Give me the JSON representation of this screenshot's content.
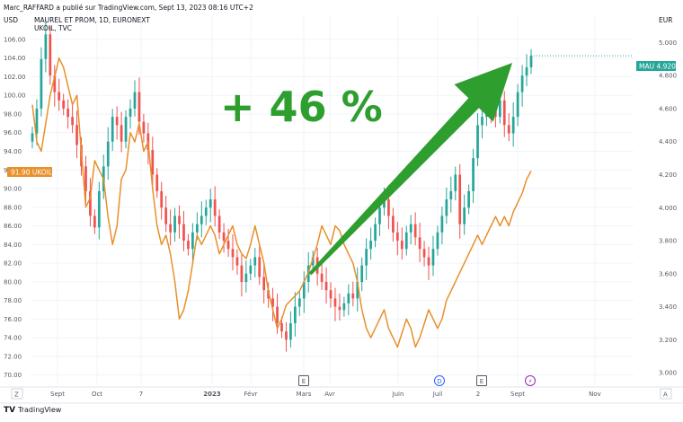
{
  "header": {
    "attribution": "Marc_RAFFARD a publié sur TradingView.com, Sept 13, 2023 08:16 UTC+2",
    "main_symbol": "MAUREL ET PROM, 1D, EURONEXT",
    "overlay_symbol": "UKOIL, TVC"
  },
  "footer": {
    "logo_text": "TradingView"
  },
  "annotation": {
    "text": "+ 46 %",
    "color": "#2e9e2e"
  },
  "colors": {
    "up": "#26a69a",
    "down": "#ef5350",
    "ukoil": "#e8902a",
    "arrow": "#2e9e2e",
    "text": "#131722",
    "axis_text": "#555a64"
  },
  "chart_data": {
    "type": "line",
    "left_axis": {
      "unit": "USD",
      "ticks": [
        "106.00",
        "104.00",
        "102.00",
        "100.00",
        "98.00",
        "96.00",
        "94.00",
        "92.00",
        "90.00",
        "88.00",
        "86.00",
        "84.00",
        "82.00",
        "80.00",
        "78.00",
        "76.00",
        "74.00",
        "72.00",
        "70.00"
      ],
      "range": [
        69,
        108.5
      ]
    },
    "right_axis": {
      "unit": "EUR",
      "ticks": [
        "5.000",
        "4.800",
        "4.600",
        "4.400",
        "4.200",
        "4.000",
        "3.800",
        "3.600",
        "3.400",
        "3.200",
        "3.000"
      ],
      "range": [
        2.93,
        5.16
      ]
    },
    "x_axis": {
      "ticks": [
        "Sept",
        "Oct",
        "7",
        "2023",
        "Févr",
        "Mars",
        "Avr",
        "Juin",
        "Juil",
        "2",
        "Sept",
        "Nov"
      ],
      "bold_ticks": [
        "2023"
      ]
    },
    "events": [
      {
        "label": "E",
        "near": "Mars"
      },
      {
        "label": "D",
        "near": "Juil"
      },
      {
        "label": "E",
        "near": "2"
      },
      {
        "label": "⚡",
        "near": "Sept"
      }
    ],
    "series": [
      {
        "name": "UKOIL",
        "last_value": "91.90",
        "label": "91.90 UKOIL",
        "axis": "left",
        "values": [
          99.0,
          95.0,
          94.0,
          97.0,
          100.0,
          102.0,
          104.0,
          103.0,
          101.0,
          99.0,
          100.0,
          94.0,
          88.0,
          89.0,
          93.0,
          92.0,
          91.0,
          87.0,
          84.0,
          86.0,
          91.0,
          92.0,
          96.0,
          95.0,
          97.0,
          94.0,
          95.0,
          90.0,
          86.0,
          84.0,
          85.0,
          83.0,
          80.0,
          76.0,
          77.0,
          79.0,
          82.0,
          85.0,
          84.0,
          85.0,
          86.0,
          85.0,
          83.0,
          84.0,
          85.0,
          86.0,
          84.0,
          83.0,
          82.5,
          84.0,
          86.0,
          84.0,
          82.0,
          79.0,
          77.0,
          75.0,
          76.0,
          77.5,
          78.0,
          78.5,
          79.0,
          80.0,
          81.0,
          82.5,
          84.0,
          86.0,
          85.0,
          84.0,
          86.0,
          85.5,
          84.0,
          83.0,
          82.0,
          80.0,
          77.0,
          75.0,
          74.0,
          75.0,
          76.0,
          77.0,
          75.0,
          74.0,
          73.0,
          74.5,
          76.0,
          75.0,
          73.0,
          74.0,
          75.5,
          77.0,
          76.0,
          75.0,
          76.0,
          78.0,
          79.0,
          80.0,
          81.0,
          82.0,
          83.0,
          84.0,
          85.0,
          84.0,
          85.0,
          86.0,
          87.0,
          86.0,
          87.0,
          86.0,
          87.5,
          88.5,
          89.5,
          91.0,
          91.9
        ]
      },
      {
        "name": "MAU",
        "last_value": "4.920",
        "label": "MAU 4.920",
        "axis": "right",
        "values": [
          4.45,
          4.6,
          4.9,
          5.05,
          4.8,
          4.7,
          4.65,
          4.6,
          4.55,
          4.5,
          4.38,
          4.25,
          4.1,
          3.95,
          3.88,
          4.1,
          4.25,
          4.4,
          4.55,
          4.5,
          4.4,
          4.55,
          4.6,
          4.7,
          4.52,
          4.45,
          4.35,
          4.2,
          4.1,
          4.0,
          3.9,
          3.85,
          3.95,
          3.9,
          3.8,
          3.75,
          3.85,
          3.9,
          3.95,
          4.0,
          4.05,
          3.95,
          3.85,
          3.8,
          3.75,
          3.7,
          3.65,
          3.55,
          3.6,
          3.65,
          3.7,
          3.58,
          3.5,
          3.45,
          3.4,
          3.3,
          3.25,
          3.2,
          3.3,
          3.4,
          3.45,
          3.55,
          3.65,
          3.7,
          3.6,
          3.55,
          3.5,
          3.45,
          3.4,
          3.38,
          3.42,
          3.48,
          3.45,
          3.55,
          3.65,
          3.75,
          3.8,
          3.9,
          4.0,
          4.05,
          3.95,
          3.85,
          3.8,
          3.75,
          3.85,
          3.9,
          3.82,
          3.75,
          3.7,
          3.65,
          3.75,
          3.85,
          3.95,
          4.05,
          4.1,
          4.2,
          3.9,
          4.0,
          4.1,
          4.3,
          4.5,
          4.55,
          4.7,
          4.6,
          4.55,
          4.65,
          4.5,
          4.45,
          4.55,
          4.7,
          4.8,
          4.85,
          4.92
        ]
      }
    ]
  }
}
